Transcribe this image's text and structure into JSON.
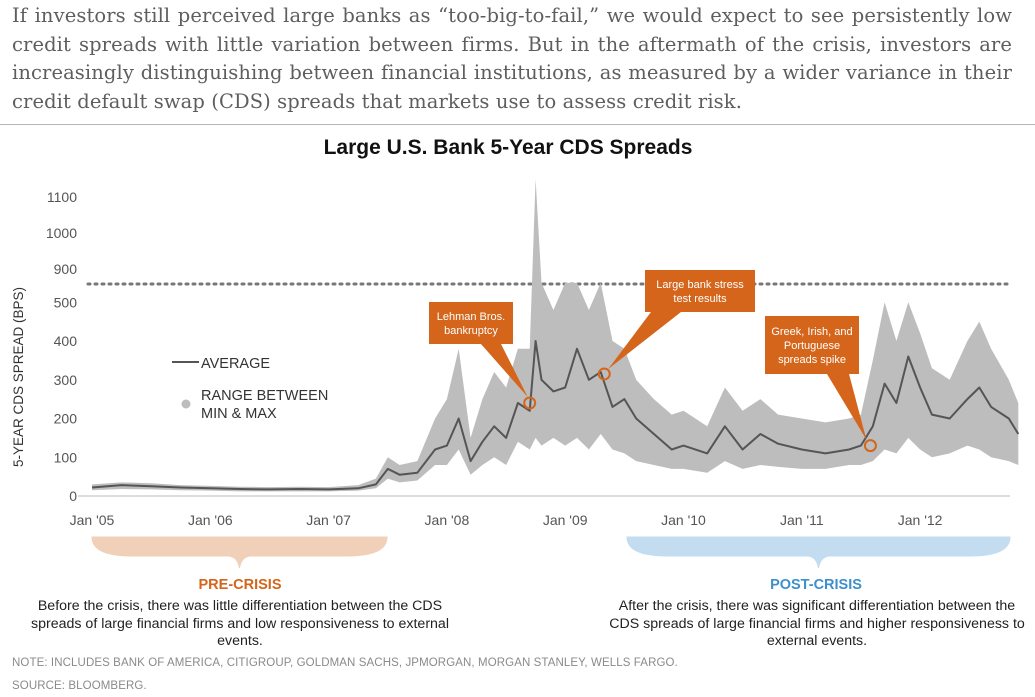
{
  "intro_text": "If investors still perceived large banks as “too-big-to-fail,” we would expect to see persistently low credit spreads with little variation between firms. But in the aftermath of the crisis, investors are increasingly distinguishing between financial institutions, as measured by a wider variance in their credit default swap (CDS) spreads that markets use to assess credit risk.",
  "chart_data": {
    "type": "area",
    "title": "Large U.S. Bank 5-Year CDS Spreads",
    "ylabel": "5-YEAR CDS SPREAD (BPS)",
    "xlabel": "",
    "ylim": [
      0,
      1150
    ],
    "axis_break": "broken y-axis above 550 (dotted line), upper section shows 900–1100",
    "yticks": [
      0,
      100,
      200,
      300,
      400,
      500,
      900,
      1000,
      1100
    ],
    "xticks": [
      "Jan '05",
      "Jan '06",
      "Jan '07",
      "Jan '08",
      "Jan '09",
      "Jan '10",
      "Jan '11",
      "Jan '12"
    ],
    "legend": {
      "placement": "left-middle",
      "entries": [
        {
          "label": "AVERAGE",
          "color": "#555555",
          "style": "line"
        },
        {
          "label": "RANGE BETWEEN MIN & MAX",
          "color": "#bdbdbd",
          "style": "dot"
        }
      ]
    },
    "series": [
      {
        "name": "AVERAGE",
        "color": "#555555",
        "x": [
          2005.0,
          2005.25,
          2005.5,
          2005.75,
          2006.0,
          2006.25,
          2006.5,
          2006.75,
          2007.0,
          2007.25,
          2007.4,
          2007.5,
          2007.6,
          2007.75,
          2007.9,
          2008.0,
          2008.1,
          2008.2,
          2008.3,
          2008.4,
          2008.5,
          2008.6,
          2008.7,
          2008.75,
          2008.8,
          2008.9,
          2009.0,
          2009.1,
          2009.2,
          2009.3,
          2009.4,
          2009.5,
          2009.6,
          2009.75,
          2009.9,
          2010.0,
          2010.2,
          2010.35,
          2010.5,
          2010.65,
          2010.8,
          2011.0,
          2011.2,
          2011.4,
          2011.5,
          2011.6,
          2011.7,
          2011.8,
          2011.9,
          2012.0,
          2012.1,
          2012.25,
          2012.4,
          2012.5,
          2012.6,
          2012.75,
          2012.83
        ],
        "values": [
          22,
          28,
          25,
          22,
          20,
          18,
          17,
          18,
          17,
          20,
          30,
          70,
          55,
          60,
          120,
          130,
          200,
          90,
          140,
          180,
          150,
          240,
          220,
          400,
          300,
          270,
          280,
          380,
          300,
          320,
          230,
          250,
          200,
          160,
          120,
          130,
          110,
          180,
          120,
          160,
          135,
          120,
          110,
          120,
          130,
          180,
          290,
          240,
          360,
          280,
          210,
          200,
          250,
          280,
          230,
          200,
          160
        ]
      },
      {
        "name": "RANGE BETWEEN MIN & MAX",
        "color": "#bdbdbd",
        "x": [
          2005.0,
          2005.25,
          2005.5,
          2005.75,
          2006.0,
          2006.25,
          2006.5,
          2006.75,
          2007.0,
          2007.25,
          2007.4,
          2007.5,
          2007.6,
          2007.75,
          2007.9,
          2008.0,
          2008.1,
          2008.2,
          2008.3,
          2008.4,
          2008.5,
          2008.6,
          2008.7,
          2008.75,
          2008.8,
          2008.9,
          2009.0,
          2009.1,
          2009.2,
          2009.3,
          2009.4,
          2009.5,
          2009.6,
          2009.75,
          2009.9,
          2010.0,
          2010.2,
          2010.35,
          2010.5,
          2010.65,
          2010.8,
          2011.0,
          2011.2,
          2011.4,
          2011.5,
          2011.6,
          2011.7,
          2011.8,
          2011.9,
          2012.0,
          2012.1,
          2012.25,
          2012.4,
          2012.5,
          2012.6,
          2012.75,
          2012.83
        ],
        "low": [
          15,
          18,
          17,
          15,
          14,
          12,
          12,
          12,
          12,
          14,
          20,
          45,
          35,
          40,
          80,
          80,
          120,
          55,
          80,
          100,
          80,
          140,
          120,
          150,
          130,
          150,
          130,
          150,
          120,
          160,
          120,
          110,
          90,
          80,
          70,
          70,
          60,
          90,
          70,
          80,
          75,
          70,
          70,
          80,
          80,
          90,
          120,
          110,
          150,
          120,
          100,
          110,
          130,
          120,
          100,
          90,
          80
        ],
        "high": [
          30,
          35,
          33,
          28,
          26,
          24,
          23,
          24,
          23,
          28,
          45,
          100,
          80,
          90,
          200,
          250,
          380,
          150,
          250,
          320,
          280,
          380,
          380,
          1150,
          550,
          480,
          550,
          550,
          480,
          550,
          400,
          380,
          300,
          250,
          210,
          220,
          180,
          280,
          220,
          250,
          210,
          200,
          190,
          200,
          210,
          350,
          500,
          400,
          500,
          420,
          330,
          300,
          400,
          450,
          380,
          300,
          240
        ]
      }
    ],
    "annotations": [
      {
        "label": "Lehman Bros. bankruptcy",
        "x": 2008.7,
        "y": 240
      },
      {
        "label": "Large bank stress test results",
        "x": 2009.33,
        "y": 315
      },
      {
        "label": "Greek, Irish, and Portuguese spreads spike",
        "x": 2011.58,
        "y": 130
      }
    ]
  },
  "pre_crisis": {
    "label": "PRE-CRISIS",
    "text": "Before the crisis, there was little differentiation between the CDS spreads of large financial firms and low responsiveness to external events."
  },
  "post_crisis": {
    "label": "POST-CRISIS",
    "text": "After the crisis, there was significant differentiation between the CDS spreads of large financial firms and higher responsiveness to external events."
  },
  "note": "NOTE: INCLUDES BANK OF AMERICA, CITIGROUP, GOLDMAN SACHS, JPMORGAN, MORGAN STANLEY, WELLS FARGO.",
  "source": "SOURCE: BLOOMBERG.",
  "colors": {
    "accent_orange": "#d4651b",
    "accent_blue": "#3d8fce",
    "range_gray": "#bdbdbd",
    "average_gray": "#555555"
  }
}
